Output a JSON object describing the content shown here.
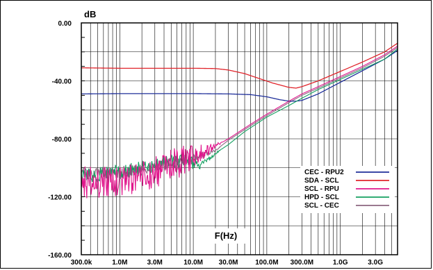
{
  "chart_data": {
    "type": "line",
    "ylabel": "dB",
    "xlabel": "F(Hz)",
    "x_scale": "log",
    "xlim": [
      300000,
      6000000000
    ],
    "ylim": [
      -160,
      0
    ],
    "grid": true,
    "legend_position": "bottom-right",
    "x_ticks": [
      {
        "value": 300000,
        "label": "300.0k"
      },
      {
        "value": 1000000,
        "label": "1.0M"
      },
      {
        "value": 3000000,
        "label": "3.0M"
      },
      {
        "value": 10000000,
        "label": "10.0M"
      },
      {
        "value": 30000000,
        "label": "30.0M"
      },
      {
        "value": 100000000,
        "label": "100.0M"
      },
      {
        "value": 300000000,
        "label": "300.0M"
      },
      {
        "value": 1000000000,
        "label": "1.0G"
      },
      {
        "value": 3000000000,
        "label": "3.0G"
      }
    ],
    "y_ticks": [
      {
        "value": 0,
        "label": "0.00"
      },
      {
        "value": -40,
        "label": "-40.00"
      },
      {
        "value": -80,
        "label": "-80.00"
      },
      {
        "value": -120,
        "label": "-120.00"
      },
      {
        "value": -160,
        "label": "-160.00"
      }
    ],
    "series": [
      {
        "name": "CEC - RPU2",
        "color": "#1f2f9a",
        "points": [
          [
            300000,
            -49
          ],
          [
            1000000,
            -48.8
          ],
          [
            3000000,
            -48.8
          ],
          [
            10000000,
            -48.8
          ],
          [
            30000000,
            -49
          ],
          [
            60000000,
            -49.5
          ],
          [
            100000000,
            -51
          ],
          [
            150000000,
            -53
          ],
          [
            200000000,
            -54
          ],
          [
            250000000,
            -54
          ],
          [
            300000000,
            -53.5
          ],
          [
            500000000,
            -49
          ],
          [
            1000000000,
            -41
          ],
          [
            2000000000,
            -33
          ],
          [
            4000000000,
            -25
          ],
          [
            6000000000,
            -19
          ]
        ]
      },
      {
        "name": "SDA - SCL",
        "color": "#e0242b",
        "points": [
          [
            300000,
            -31
          ],
          [
            1000000,
            -31.3
          ],
          [
            3000000,
            -31.3
          ],
          [
            10000000,
            -31.3
          ],
          [
            20000000,
            -31.5
          ],
          [
            30000000,
            -32.5
          ],
          [
            50000000,
            -35
          ],
          [
            80000000,
            -38.5
          ],
          [
            120000000,
            -41.5
          ],
          [
            200000000,
            -44.5
          ],
          [
            250000000,
            -45
          ],
          [
            300000000,
            -44
          ],
          [
            500000000,
            -40
          ],
          [
            1000000000,
            -33.5
          ],
          [
            2000000000,
            -27
          ],
          [
            4000000000,
            -20
          ],
          [
            6000000000,
            -14
          ]
        ]
      },
      {
        "name": "SCL - RPU",
        "color": "#e0168c",
        "points": [
          [
            300000,
            -110
          ],
          [
            1000000,
            -110
          ],
          [
            2000000,
            -107
          ],
          [
            3000000,
            -103
          ],
          [
            5000000,
            -98
          ],
          [
            8000000,
            -95
          ],
          [
            10000000,
            -93
          ],
          [
            20000000,
            -85
          ],
          [
            30000000,
            -80
          ],
          [
            60000000,
            -70
          ],
          [
            100000000,
            -63
          ],
          [
            200000000,
            -54
          ],
          [
            300000000,
            -49
          ],
          [
            500000000,
            -44
          ],
          [
            1000000000,
            -37
          ],
          [
            2000000000,
            -30
          ],
          [
            4000000000,
            -22
          ],
          [
            6000000000,
            -16
          ]
        ]
      },
      {
        "name": "HPD - SCL",
        "color": "#14a060",
        "points": [
          [
            300000,
            -106
          ],
          [
            1000000,
            -103
          ],
          [
            2000000,
            -100
          ],
          [
            3000000,
            -99
          ],
          [
            5000000,
            -96
          ],
          [
            8000000,
            -96
          ],
          [
            12000000,
            -98
          ],
          [
            15000000,
            -96
          ],
          [
            20000000,
            -90
          ],
          [
            30000000,
            -84
          ],
          [
            50000000,
            -75
          ],
          [
            100000000,
            -65
          ],
          [
            200000000,
            -57
          ],
          [
            300000000,
            -52
          ],
          [
            500000000,
            -46
          ],
          [
            1000000000,
            -39
          ],
          [
            2000000000,
            -32
          ],
          [
            4000000000,
            -25
          ],
          [
            6000000000,
            -18
          ]
        ]
      },
      {
        "name": "SCL - CEC",
        "color": "#8c6680",
        "points": [
          [
            300000,
            -104
          ],
          [
            1000000,
            -103
          ],
          [
            2000000,
            -101
          ],
          [
            3000000,
            -99
          ],
          [
            5000000,
            -97
          ],
          [
            10000000,
            -94
          ],
          [
            20000000,
            -88
          ],
          [
            30000000,
            -81
          ],
          [
            60000000,
            -71
          ],
          [
            100000000,
            -64
          ],
          [
            200000000,
            -55
          ],
          [
            300000000,
            -50
          ],
          [
            500000000,
            -45
          ],
          [
            1000000000,
            -38
          ],
          [
            2000000000,
            -31
          ],
          [
            4000000000,
            -23
          ],
          [
            6000000000,
            -17
          ]
        ]
      }
    ]
  }
}
